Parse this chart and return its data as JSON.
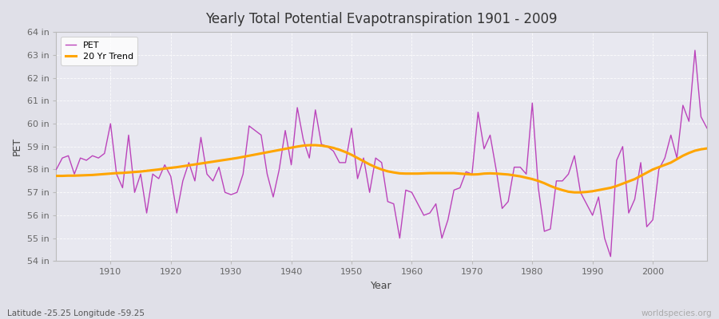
{
  "title": "Yearly Total Potential Evapotranspiration 1901 - 2009",
  "xlabel": "Year",
  "ylabel": "PET",
  "subtitle": "Latitude -25.25 Longitude -59.25",
  "watermark": "worldspecies.org",
  "pet_color": "#bb44bb",
  "trend_color": "#ffa500",
  "fig_bg_color": "#e0e0e8",
  "plot_bg_color": "#e8e8f0",
  "ylim": [
    54,
    64
  ],
  "xlim": [
    1901,
    2009
  ],
  "yticks": [
    54,
    55,
    56,
    57,
    58,
    59,
    60,
    61,
    62,
    63,
    64
  ],
  "xticks": [
    1910,
    1920,
    1930,
    1940,
    1950,
    1960,
    1970,
    1980,
    1990,
    2000
  ],
  "years": [
    1901,
    1902,
    1903,
    1904,
    1905,
    1906,
    1907,
    1908,
    1909,
    1910,
    1911,
    1912,
    1913,
    1914,
    1915,
    1916,
    1917,
    1918,
    1919,
    1920,
    1921,
    1922,
    1923,
    1924,
    1925,
    1926,
    1927,
    1928,
    1929,
    1930,
    1931,
    1932,
    1933,
    1934,
    1935,
    1936,
    1937,
    1938,
    1939,
    1940,
    1941,
    1942,
    1943,
    1944,
    1945,
    1946,
    1947,
    1948,
    1949,
    1950,
    1951,
    1952,
    1953,
    1954,
    1955,
    1956,
    1957,
    1958,
    1959,
    1960,
    1961,
    1962,
    1963,
    1964,
    1965,
    1966,
    1967,
    1968,
    1969,
    1970,
    1971,
    1972,
    1973,
    1974,
    1975,
    1976,
    1977,
    1978,
    1979,
    1980,
    1981,
    1982,
    1983,
    1984,
    1985,
    1986,
    1987,
    1988,
    1989,
    1990,
    1991,
    1992,
    1993,
    1994,
    1995,
    1996,
    1997,
    1998,
    1999,
    2000,
    2001,
    2002,
    2003,
    2004,
    2005,
    2006,
    2007,
    2008,
    2009
  ],
  "pet_values": [
    58.0,
    58.5,
    58.6,
    57.8,
    58.5,
    58.4,
    58.6,
    58.5,
    58.7,
    60.0,
    57.8,
    57.2,
    59.5,
    57.0,
    57.8,
    56.1,
    57.8,
    57.6,
    58.2,
    57.7,
    56.1,
    57.5,
    58.3,
    57.5,
    59.4,
    57.8,
    57.5,
    58.1,
    57.0,
    56.9,
    57.0,
    57.8,
    59.9,
    59.7,
    59.5,
    57.8,
    56.8,
    58.0,
    59.7,
    58.2,
    60.7,
    59.3,
    58.5,
    60.6,
    59.1,
    59.0,
    58.8,
    58.3,
    58.3,
    59.8,
    57.6,
    58.5,
    57.0,
    58.5,
    58.3,
    56.6,
    56.5,
    55.0,
    57.1,
    57.0,
    56.5,
    56.0,
    56.1,
    56.5,
    55.0,
    55.8,
    57.1,
    57.2,
    57.9,
    57.8,
    60.5,
    58.9,
    59.5,
    58.0,
    56.3,
    56.6,
    58.1,
    58.1,
    57.8,
    60.9,
    57.2,
    55.3,
    55.4,
    57.5,
    57.5,
    57.8,
    58.6,
    57.0,
    56.5,
    56.0,
    56.8,
    55.0,
    54.2,
    58.4,
    59.0,
    56.1,
    56.7,
    58.3,
    55.5,
    55.8,
    58.0,
    58.5,
    59.5,
    58.5,
    60.8,
    60.1,
    63.2,
    60.3,
    59.8
  ],
  "trend_values": [
    57.72,
    57.72,
    57.73,
    57.73,
    57.74,
    57.75,
    57.76,
    57.78,
    57.8,
    57.82,
    57.84,
    57.85,
    57.87,
    57.89,
    57.91,
    57.94,
    57.97,
    58.0,
    58.04,
    58.07,
    58.1,
    58.14,
    58.18,
    58.22,
    58.26,
    58.3,
    58.34,
    58.38,
    58.42,
    58.46,
    58.5,
    58.55,
    58.6,
    58.65,
    58.7,
    58.75,
    58.8,
    58.85,
    58.9,
    58.95,
    59.0,
    59.04,
    59.06,
    59.06,
    59.04,
    59.0,
    58.94,
    58.86,
    58.76,
    58.64,
    58.5,
    58.36,
    58.22,
    58.1,
    58.0,
    57.92,
    57.87,
    57.83,
    57.82,
    57.82,
    57.82,
    57.83,
    57.84,
    57.84,
    57.84,
    57.84,
    57.84,
    57.82,
    57.8,
    57.78,
    57.79,
    57.82,
    57.83,
    57.82,
    57.8,
    57.78,
    57.74,
    57.7,
    57.64,
    57.58,
    57.5,
    57.4,
    57.28,
    57.18,
    57.1,
    57.03,
    57.0,
    57.0,
    57.02,
    57.05,
    57.1,
    57.15,
    57.2,
    57.28,
    57.38,
    57.48,
    57.58,
    57.72,
    57.86,
    58.0,
    58.1,
    58.2,
    58.3,
    58.45,
    58.6,
    58.72,
    58.82,
    58.88,
    58.92
  ]
}
